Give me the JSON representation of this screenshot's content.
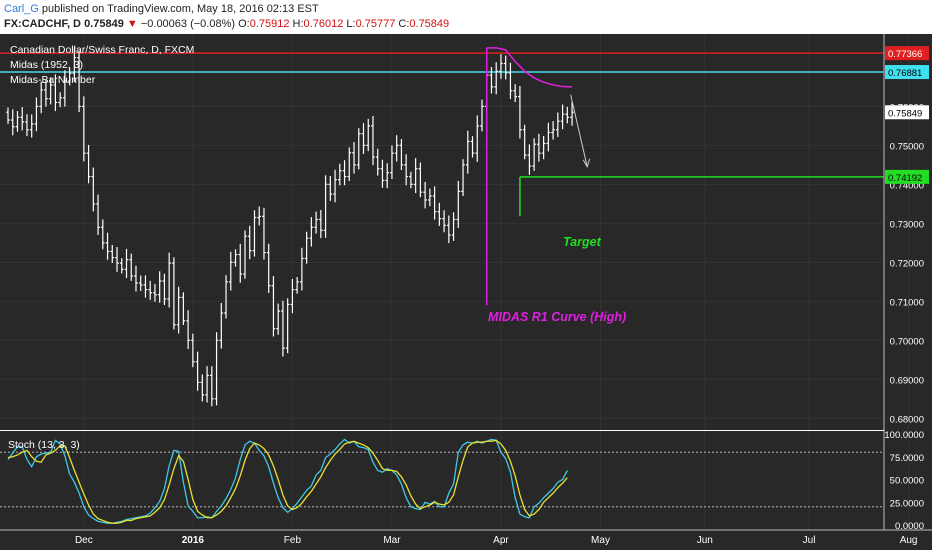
{
  "header": {
    "user": "Carl_G",
    "published": "published on TradingView.com, May 18, 2016 02:13 EST",
    "symbol": "FX:CADCHF, D",
    "last": "0.75849",
    "change_arrow": "▼",
    "change": "−0.00063 (−0.08%)",
    "o_label": "O:",
    "o_value": "0.75912",
    "h_label": "H:",
    "h_value": "0.76012",
    "l_label": "L:",
    "l_value": "0.75777",
    "c_label": "C:",
    "c_value": "0.75849"
  },
  "legend": {
    "title": "Canadian Dollar/Swiss Franc, D, FXCM",
    "midas": "Midas (1952, 3)",
    "midas_bar": "Midas-BarNumber"
  },
  "colors": {
    "background": "#282828",
    "bars": "#ffffff",
    "red_line": "#e02020",
    "cyan_line": "#3fe0f0",
    "midas_curve": "#e020e0",
    "target": "#22dd22",
    "stoch_k": "#3fc8e8",
    "stoch_d": "#e8e030"
  },
  "annotations": {
    "target": "Target",
    "midas_label": "MIDAS R1 Curve (High)"
  },
  "price_badges": {
    "red": "0.77366",
    "cyan": "0.76881",
    "last": "0.75849",
    "green": "0.74192"
  },
  "stoch": {
    "title": "Stoch (13, 3, 3)",
    "axis_labels": [
      "100.0000",
      "75.0000",
      "50.0000",
      "25.0000",
      "0.0000"
    ],
    "upper_band": 80,
    "lower_band": 20
  },
  "chart_data": [
    {
      "type": "candlestick",
      "title": "Canadian Dollar/Swiss Franc, D, FXCM",
      "x_ticks": [
        "Dec",
        "2016",
        "Feb",
        "Mar",
        "Apr",
        "May",
        "Jun",
        "Jul",
        "Aug"
      ],
      "y_ticks": [
        "0.68000",
        "0.69000",
        "0.70000",
        "0.71000",
        "0.72000",
        "0.73000",
        "0.74000",
        "0.75000",
        "0.76000"
      ],
      "ylim": [
        0.677,
        0.776
      ],
      "date_range": [
        "2015-11-09",
        "2016-05-17"
      ],
      "levels": [
        {
          "name": "resistance",
          "value": 0.77366,
          "color": "red"
        },
        {
          "name": "midas",
          "value": 0.76881,
          "color": "cyan"
        },
        {
          "name": "target",
          "value": 0.74192,
          "color": "green"
        }
      ],
      "closes": [
        0.7565,
        0.7548,
        0.7572,
        0.756,
        0.754,
        0.7555,
        0.76,
        0.7642,
        0.762,
        0.7655,
        0.761,
        0.7622,
        0.7665,
        0.7685,
        0.7725,
        0.76,
        0.748,
        0.742,
        0.735,
        0.729,
        0.725,
        0.7228,
        0.7212,
        0.7198,
        0.7182,
        0.7207,
        0.7165,
        0.7147,
        0.7142,
        0.713,
        0.7122,
        0.7117,
        0.7152,
        0.7106,
        0.7198,
        0.704,
        0.711,
        0.705,
        0.7,
        0.6945,
        0.6892,
        0.686,
        0.691,
        0.685,
        0.7,
        0.707,
        0.715,
        0.72,
        0.722,
        0.717,
        0.7267,
        0.723,
        0.7315,
        0.7318,
        0.7225,
        0.714,
        0.703,
        0.7075,
        0.698,
        0.7092,
        0.713,
        0.715,
        0.721,
        0.7262,
        0.729,
        0.731,
        0.7282,
        0.74,
        0.7375,
        0.7412,
        0.7435,
        0.742,
        0.7481,
        0.745,
        0.753,
        0.75,
        0.755,
        0.747,
        0.744,
        0.741,
        0.743,
        0.748,
        0.75,
        0.745,
        0.742,
        0.74,
        0.744,
        0.738,
        0.736,
        0.737,
        0.733,
        0.7312,
        0.7295,
        0.727,
        0.731,
        0.7382,
        0.745,
        0.751,
        0.748,
        0.755,
        0.76,
        0.768,
        0.765,
        0.769,
        0.771,
        0.7686,
        0.764,
        0.7625,
        0.754,
        0.7475,
        0.7447,
        0.7503,
        0.748,
        0.7505,
        0.7533,
        0.754,
        0.7562,
        0.758,
        0.7572,
        0.7585
      ]
    },
    {
      "type": "line",
      "title": "Stoch (13, 3, 3)",
      "ylim": [
        0,
        100
      ],
      "series": [
        {
          "name": "%K",
          "values": [
            72,
            79,
            86,
            86,
            72,
            64,
            75,
            78,
            79,
            80,
            93,
            89,
            76,
            56,
            47,
            35,
            20,
            11,
            7,
            4,
            3,
            2,
            2,
            3,
            4,
            6,
            7,
            8,
            9,
            10,
            13,
            19,
            26,
            40,
            65,
            82,
            81,
            47,
            21,
            15,
            8,
            8,
            9,
            8,
            15,
            21,
            29,
            39,
            52,
            72,
            88,
            92,
            90,
            82,
            76,
            64,
            46,
            30,
            19,
            14,
            18,
            24,
            31,
            38,
            43,
            55,
            60,
            74,
            78,
            83,
            89,
            94,
            90,
            92,
            86,
            85,
            83,
            69,
            60,
            58,
            62,
            60,
            55,
            45,
            30,
            20,
            18,
            17,
            25,
            23,
            26,
            20,
            20,
            35,
            45,
            80,
            88,
            91,
            90,
            92,
            90,
            92,
            94,
            93,
            80,
            73,
            58,
            30,
            12,
            9,
            8,
            20,
            24,
            30,
            35,
            40,
            47,
            50,
            60
          ]
        },
        {
          "name": "%D",
          "values": [
            74,
            75,
            77,
            80,
            82,
            75,
            70,
            69,
            77,
            79,
            82,
            87,
            87,
            74,
            60,
            47,
            34,
            22,
            12,
            7,
            5,
            3,
            2,
            2,
            3,
            5,
            5,
            7,
            8,
            9,
            10,
            14,
            19,
            28,
            44,
            62,
            76,
            70,
            50,
            28,
            15,
            11,
            8,
            8,
            11,
            15,
            21,
            30,
            40,
            54,
            71,
            84,
            90,
            88,
            84,
            77,
            65,
            50,
            33,
            21,
            17,
            19,
            24,
            31,
            37,
            45,
            53,
            63,
            71,
            78,
            83,
            89,
            91,
            92,
            90,
            88,
            85,
            79,
            71,
            62,
            60,
            60,
            59,
            53,
            44,
            32,
            23,
            18,
            20,
            22,
            25,
            23,
            22,
            25,
            33,
            53,
            71,
            86,
            90,
            91,
            91,
            92,
            92,
            93,
            89,
            82,
            70,
            54,
            33,
            17,
            10,
            12,
            17,
            25,
            30,
            35,
            41,
            46,
            52
          ]
        }
      ],
      "upper_band": 80,
      "lower_band": 20
    }
  ]
}
